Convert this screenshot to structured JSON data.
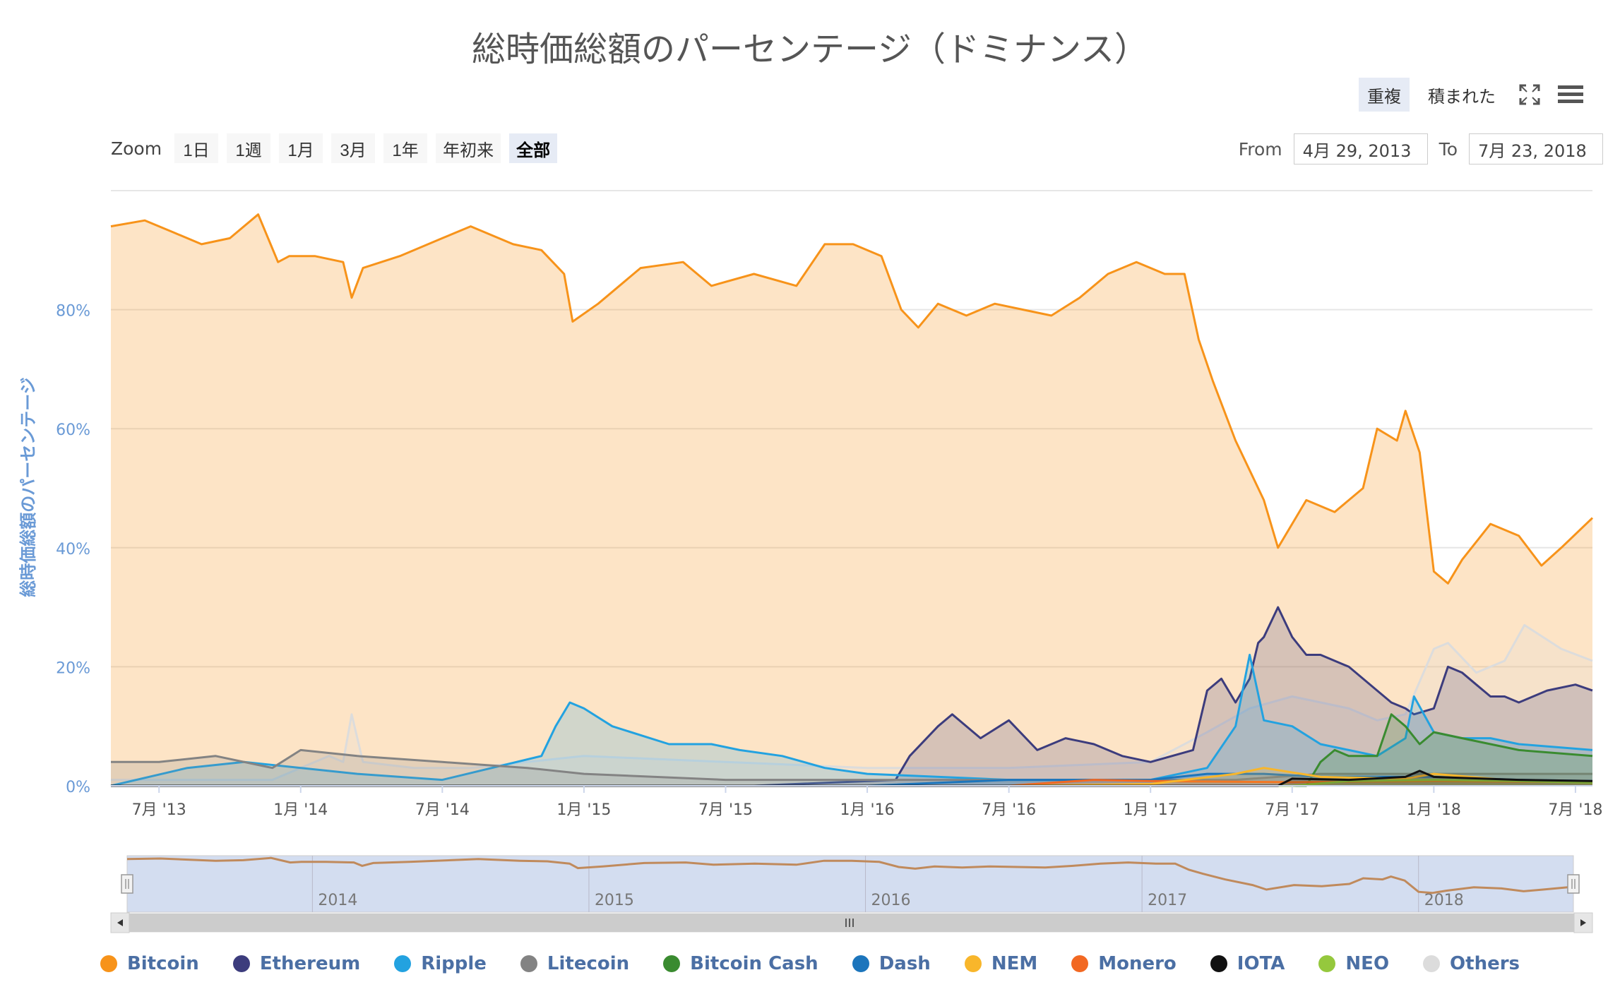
{
  "page": {
    "title": "総時価総額のパーセンテージ（ドミナンス）",
    "mode_buttons": [
      "重複",
      "積まれた"
    ],
    "active_mode": "重複",
    "zoom": {
      "label": "Zoom",
      "buttons": [
        "1日",
        "1週",
        "1月",
        "3月",
        "1年",
        "年初来",
        "全部"
      ],
      "active": "全部"
    },
    "range": {
      "from_label": "From",
      "from_value": "4月 29, 2013",
      "to_label": "To",
      "to_value": "7月 23, 2018"
    },
    "icons": {
      "fullscreen": "fullscreen-icon",
      "menu": "hamburger-menu-icon"
    }
  },
  "chart_data": {
    "type": "area",
    "title": "総時価総額のパーセンテージ（ドミナンス）",
    "ylabel": "総時価総額のパーセンテージ",
    "ylim": [
      0,
      100
    ],
    "yticks": [
      0,
      20,
      40,
      60,
      80
    ],
    "ytick_labels": [
      "0%",
      "20%",
      "40%",
      "60%",
      "80%"
    ],
    "xlim": [
      2013.33,
      2018.56
    ],
    "xticks": [
      2013.5,
      2014.0,
      2014.5,
      2015.0,
      2015.5,
      2016.0,
      2016.5,
      2017.0,
      2017.5,
      2018.0,
      2018.5
    ],
    "xtick_labels": [
      "7月 '13",
      "1月 '14",
      "7月 '14",
      "1月 '15",
      "7月 '15",
      "1月 '16",
      "7月 '16",
      "1月 '17",
      "7月 '17",
      "1月 '18",
      "7月 '18"
    ],
    "grid": true,
    "legend": "bottom",
    "navigator": {
      "year_labels": [
        "2014",
        "2015",
        "2016",
        "2017",
        "2018"
      ],
      "year_positions": [
        2014.0,
        2015.0,
        2016.0,
        2017.0,
        2018.0
      ],
      "selected_range": [
        2013.33,
        2018.56
      ]
    },
    "series": [
      {
        "name": "Bitcoin",
        "color": "#f7931a",
        "x": [
          2013.33,
          2013.45,
          2013.55,
          2013.65,
          2013.75,
          2013.85,
          2013.92,
          2013.96,
          2014.05,
          2014.15,
          2014.18,
          2014.22,
          2014.35,
          2014.5,
          2014.6,
          2014.75,
          2014.85,
          2014.93,
          2014.96,
          2015.05,
          2015.2,
          2015.35,
          2015.45,
          2015.6,
          2015.75,
          2015.85,
          2015.95,
          2016.05,
          2016.12,
          2016.18,
          2016.25,
          2016.35,
          2016.45,
          2016.55,
          2016.65,
          2016.75,
          2016.85,
          2016.95,
          2017.05,
          2017.12,
          2017.17,
          2017.22,
          2017.3,
          2017.4,
          2017.45,
          2017.55,
          2017.65,
          2017.75,
          2017.8,
          2017.87,
          2017.9,
          2017.95,
          2018.0,
          2018.05,
          2018.1,
          2018.2,
          2018.3,
          2018.38,
          2018.45,
          2018.56
        ],
        "values": [
          94,
          95,
          93,
          91,
          92,
          96,
          88,
          89,
          89,
          88,
          82,
          87,
          89,
          92,
          94,
          91,
          90,
          86,
          78,
          81,
          87,
          88,
          84,
          86,
          84,
          91,
          91,
          89,
          80,
          77,
          81,
          79,
          81,
          80,
          79,
          82,
          86,
          88,
          86,
          86,
          75,
          68,
          58,
          48,
          40,
          48,
          46,
          50,
          60,
          58,
          63,
          56,
          36,
          34,
          38,
          44,
          42,
          37,
          40,
          45
        ]
      },
      {
        "name": "Ethereum",
        "color": "#3c3c7d",
        "x": [
          2013.33,
          2015.6,
          2016.1,
          2016.15,
          2016.25,
          2016.3,
          2016.4,
          2016.5,
          2016.6,
          2016.7,
          2016.8,
          2016.9,
          2017.0,
          2017.15,
          2017.2,
          2017.25,
          2017.3,
          2017.35,
          2017.38,
          2017.4,
          2017.45,
          2017.5,
          2017.55,
          2017.6,
          2017.7,
          2017.8,
          2017.85,
          2017.9,
          2017.93,
          2018.0,
          2018.05,
          2018.1,
          2018.15,
          2018.2,
          2018.25,
          2018.3,
          2018.4,
          2018.5,
          2018.56
        ],
        "values": [
          0,
          0,
          1,
          5,
          10,
          12,
          8,
          11,
          6,
          8,
          7,
          5,
          4,
          6,
          16,
          18,
          14,
          18,
          24,
          25,
          30,
          25,
          22,
          22,
          20,
          16,
          14,
          13,
          12,
          13,
          20,
          19,
          17,
          15,
          15,
          14,
          16,
          17,
          16
        ]
      },
      {
        "name": "Ripple",
        "color": "#23a2e0",
        "x": [
          2013.33,
          2013.6,
          2013.8,
          2014.2,
          2014.5,
          2014.85,
          2014.9,
          2014.95,
          2015.0,
          2015.1,
          2015.3,
          2015.45,
          2015.55,
          2015.7,
          2015.85,
          2016.0,
          2016.5,
          2017.0,
          2017.2,
          2017.3,
          2017.35,
          2017.4,
          2017.5,
          2017.6,
          2017.7,
          2017.8,
          2017.9,
          2017.93,
          2018.0,
          2018.1,
          2018.2,
          2018.3,
          2018.56
        ],
        "values": [
          0,
          3,
          4,
          2,
          1,
          5,
          10,
          14,
          13,
          10,
          7,
          7,
          6,
          5,
          3,
          2,
          1,
          1,
          3,
          10,
          22,
          11,
          10,
          7,
          6,
          5,
          8,
          15,
          9,
          8,
          8,
          7,
          6
        ]
      },
      {
        "name": "Litecoin",
        "color": "#838383",
        "x": [
          2013.33,
          2013.5,
          2013.7,
          2013.9,
          2014.0,
          2014.2,
          2014.5,
          2014.8,
          2015.0,
          2015.5,
          2016.0,
          2016.5,
          2017.0,
          2017.3,
          2017.6,
          2017.9,
          2018.0,
          2018.3,
          2018.56
        ],
        "values": [
          4,
          4,
          5,
          3,
          6,
          5,
          4,
          3,
          2,
          1,
          1,
          1,
          1,
          1,
          2,
          2,
          2,
          2,
          2
        ]
      },
      {
        "name": "Bitcoin Cash",
        "color": "#3a8b30",
        "x": [
          2013.33,
          2017.55,
          2017.6,
          2017.65,
          2017.7,
          2017.8,
          2017.85,
          2017.9,
          2017.95,
          2018.0,
          2018.1,
          2018.3,
          2018.56
        ],
        "values": [
          0,
          0,
          4,
          6,
          5,
          5,
          12,
          10,
          7,
          9,
          8,
          6,
          5
        ]
      },
      {
        "name": "Dash",
        "color": "#1c75bc",
        "x": [
          2013.33,
          2016.0,
          2016.5,
          2017.0,
          2017.2,
          2017.4,
          2017.6,
          2018.0,
          2018.3,
          2018.56
        ],
        "values": [
          0,
          0,
          1,
          1,
          2,
          2,
          1.5,
          1.5,
          1,
          0.8
        ]
      },
      {
        "name": "NEM",
        "color": "#f8b62b",
        "x": [
          2013.33,
          2016.5,
          2017.0,
          2017.3,
          2017.4,
          2017.6,
          2017.9,
          2018.0,
          2018.3,
          2018.56
        ],
        "values": [
          0,
          0,
          0.3,
          2,
          3,
          1.5,
          1.2,
          2,
          0.8,
          0.5
        ]
      },
      {
        "name": "Monero",
        "color": "#f26822",
        "x": [
          2013.33,
          2016.5,
          2016.8,
          2017.0,
          2017.5,
          2018.0,
          2018.56
        ],
        "values": [
          0,
          0,
          1,
          0.8,
          0.6,
          0.8,
          0.6
        ]
      },
      {
        "name": "IOTA",
        "color": "#111111",
        "x": [
          2013.33,
          2017.45,
          2017.5,
          2017.7,
          2017.9,
          2017.95,
          2018.0,
          2018.3,
          2018.56
        ],
        "values": [
          0,
          0,
          1.2,
          1,
          1.5,
          2.5,
          1.5,
          1,
          0.8
        ]
      },
      {
        "name": "NEO",
        "color": "#95c83d",
        "x": [
          2013.33,
          2017.5,
          2017.7,
          2018.0,
          2018.3,
          2018.56
        ],
        "values": [
          0,
          0,
          0.8,
          1,
          0.8,
          0.5
        ]
      },
      {
        "name": "Others",
        "color": "#dcdcdc",
        "x": [
          2013.33,
          2013.9,
          2014.0,
          2014.1,
          2014.15,
          2014.18,
          2014.22,
          2014.4,
          2014.6,
          2014.8,
          2015.0,
          2015.5,
          2016.0,
          2016.5,
          2017.0,
          2017.2,
          2017.35,
          2017.5,
          2017.7,
          2017.8,
          2017.9,
          2018.0,
          2018.05,
          2018.15,
          2018.25,
          2018.32,
          2018.45,
          2018.56
        ],
        "values": [
          1,
          1,
          3,
          5,
          4,
          12,
          4,
          3,
          3,
          4,
          5,
          4,
          3,
          3,
          4,
          9,
          13,
          15,
          13,
          11,
          12,
          23,
          24,
          19,
          21,
          27,
          23,
          21
        ]
      }
    ]
  }
}
